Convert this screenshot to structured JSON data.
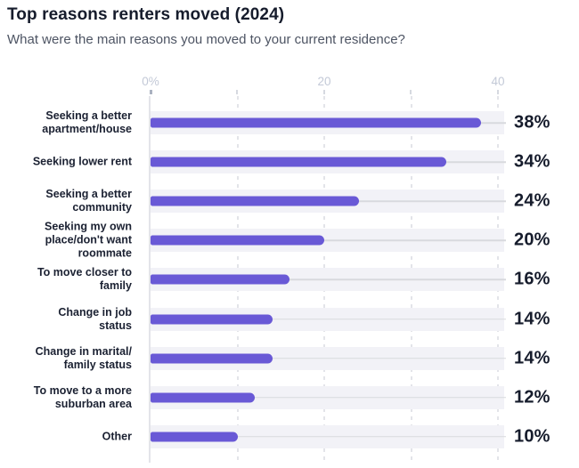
{
  "header": {
    "title": "Top reasons renters moved (2024)",
    "subtitle": "What were the main reasons you moved to your current residence?"
  },
  "chart_data": {
    "type": "bar",
    "orientation": "horizontal",
    "title": "Top reasons renters moved (2024)",
    "subtitle": "What were the main reasons you moved to your current residence?",
    "xlabel": "",
    "ylabel": "",
    "categories": [
      "Seeking a better apartment/house",
      "Seeking lower rent",
      "Seeking a better community",
      "Seeking my own place/don't want roommate",
      "To move closer to family",
      "Change in job status",
      "Change in marital/ family status",
      "To move to a more suburban area",
      "Other"
    ],
    "categories_wrapped": [
      "Seeking a better\napartment/house",
      "Seeking lower rent",
      "Seeking a better\ncommunity",
      "Seeking my own\nplace/don't want\nroommate",
      "To move closer to\nfamily",
      "Change in job\nstatus",
      "Change in marital/\nfamily status",
      "To move to a more\nsuburban area",
      "Other"
    ],
    "values": [
      38,
      34,
      24,
      20,
      16,
      14,
      14,
      12,
      10
    ],
    "value_labels": [
      "38%",
      "34%",
      "24%",
      "20%",
      "16%",
      "14%",
      "14%",
      "12%",
      "10%"
    ],
    "xlim": [
      0,
      40.7
    ],
    "x_ticks": [
      {
        "value": 0,
        "label": "0%"
      },
      {
        "value": 20,
        "label": "20"
      },
      {
        "value": 40,
        "label": "40"
      }
    ],
    "minor_ticks": [
      10,
      30
    ],
    "gridlines": [
      10,
      20,
      30,
      40
    ],
    "grid_style": "dashed-vertical",
    "legend": "none",
    "colors": {
      "bar": "#6959d6",
      "track": "#f2f2f7",
      "connector": "#d8d9de",
      "gridline": "#e3e4e9",
      "axis_line": "#e3e4e9",
      "tick_label": "#c3c9d7",
      "title": "#161c2c",
      "subtitle": "#4d5463",
      "category_label": "#1b2132",
      "value_label": "#161c2c",
      "background": "#ffffff"
    }
  }
}
